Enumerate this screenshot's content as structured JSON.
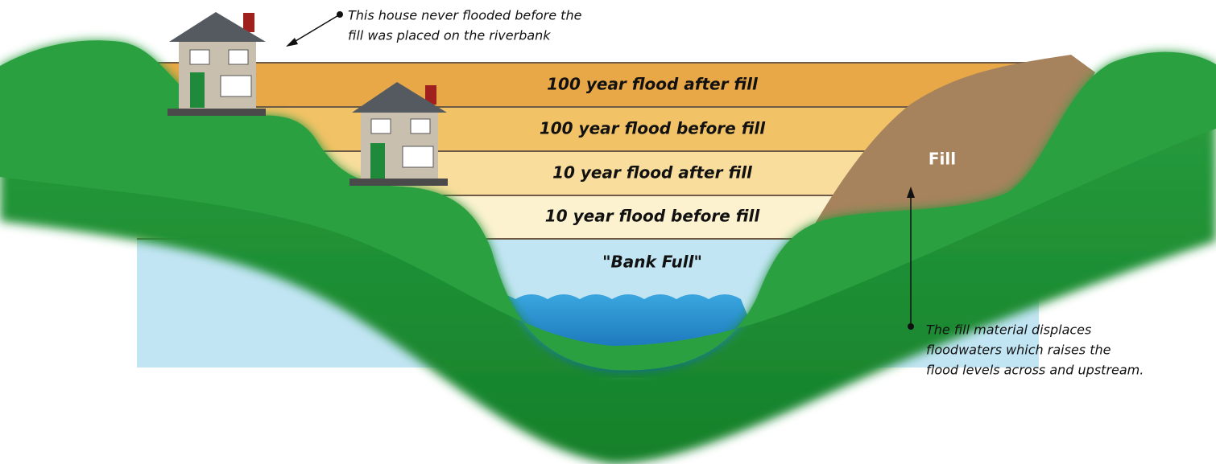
{
  "bands": [
    {
      "label": "100 year flood after fill"
    },
    {
      "label": "100 year flood before fill"
    },
    {
      "label": "10 year flood after fill"
    },
    {
      "label": "10 year flood before fill"
    },
    {
      "label": "\"Bank Full\""
    }
  ],
  "fill_label": "Fill",
  "annotations": [
    {
      "lines": [
        "This house never flooded before the",
        "fill was placed on the riverbank"
      ]
    },
    {
      "lines": [
        "The fill material displaces",
        "floodwaters which raises the",
        "flood levels across and upstream."
      ]
    }
  ]
}
